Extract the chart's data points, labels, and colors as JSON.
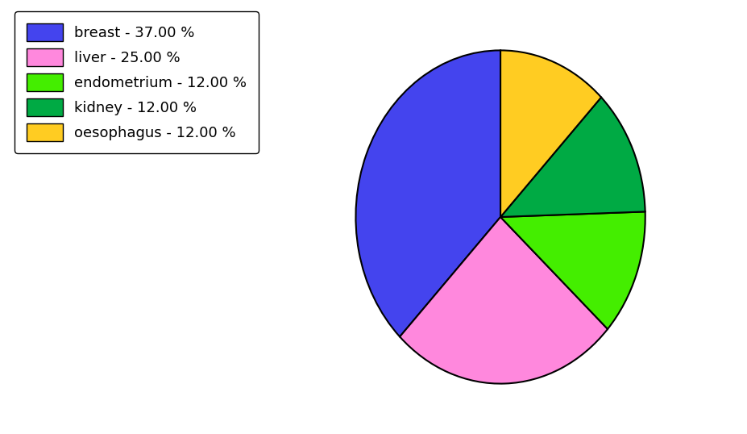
{
  "labels": [
    "breast",
    "liver",
    "endometrium",
    "kidney",
    "oesophagus"
  ],
  "percentages": [
    37.0,
    25.0,
    12.0,
    12.0,
    12.0
  ],
  "colors": [
    "#4444ee",
    "#ff88dd",
    "#44ee00",
    "#00aa44",
    "#ffcc22"
  ],
  "legend_labels": [
    "breast - 37.00 %",
    "liver - 25.00 %",
    "endometrium - 12.00 %",
    "kidney - 12.00 %",
    "oesophagus - 12.00 %"
  ],
  "background_color": "#ffffff",
  "edge_color": "#000000",
  "edge_width": 1.5,
  "startangle": 90,
  "legend_fontsize": 13,
  "figsize": [
    9.27,
    5.38
  ],
  "dpi": 100
}
